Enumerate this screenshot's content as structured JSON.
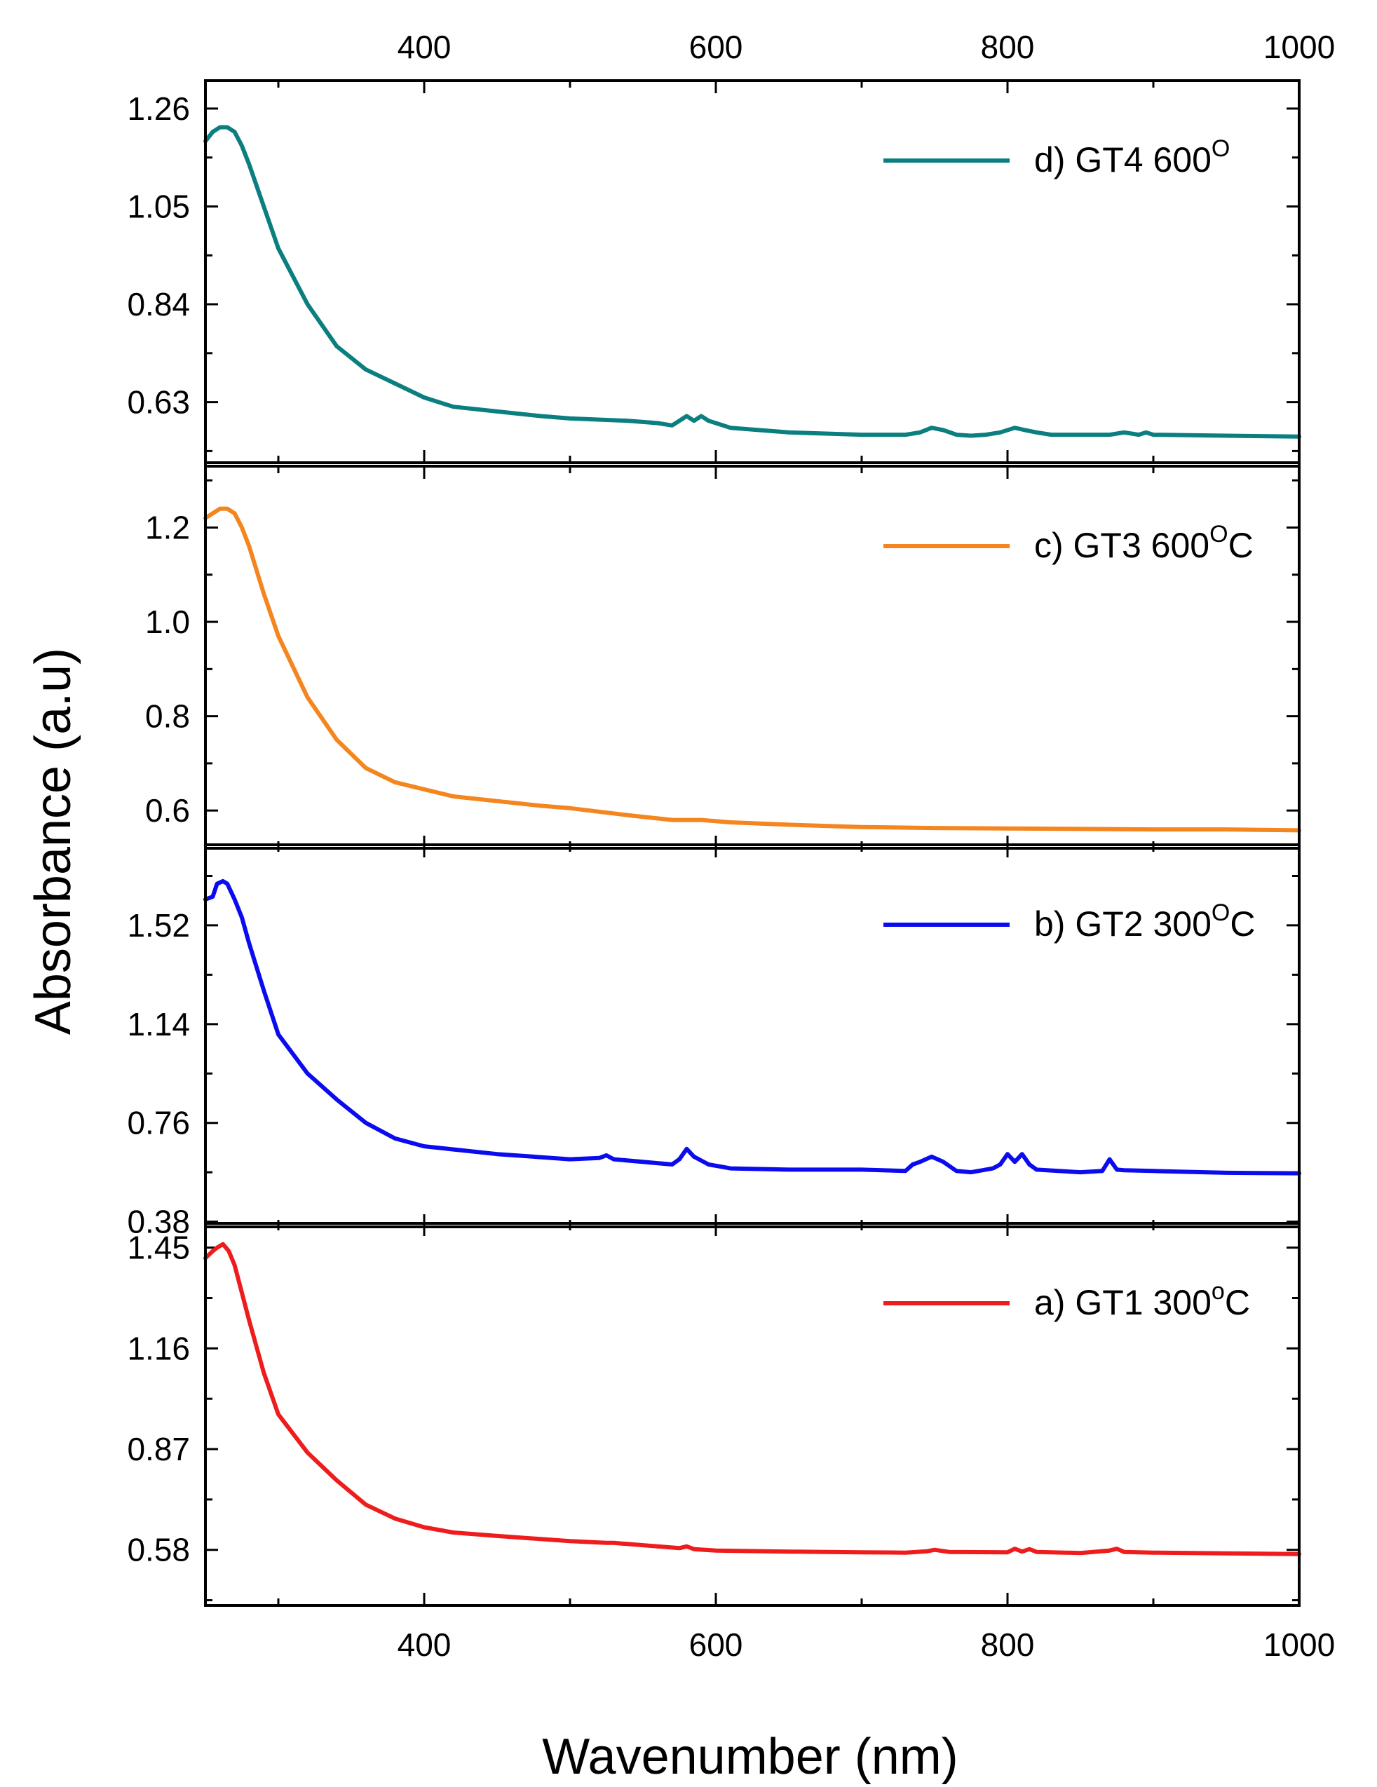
{
  "chart_data": {
    "type": "line",
    "xlabel": "Wavenumber (nm)",
    "ylabel": "Absorbance (a.u)",
    "xlim": [
      250,
      1000
    ],
    "xticks": [
      400,
      600,
      800,
      1000
    ],
    "top_axis_ticks": [
      400,
      600,
      800,
      1000
    ],
    "panels": [
      {
        "id": "d",
        "legend": "d) GT4 600O",
        "legend_main": "d) GT4 600",
        "legend_sup": "O",
        "legend_suffix": "",
        "color": "#0b7f7f",
        "ylim": [
          0.5,
          1.32
        ],
        "yticks": [
          0.63,
          0.84,
          1.05,
          1.26
        ],
        "ytick_labels": [
          "0.63",
          "0.84",
          "1.05",
          "1.26"
        ],
        "x": [
          250,
          255,
          260,
          265,
          270,
          275,
          280,
          290,
          300,
          320,
          340,
          360,
          380,
          400,
          420,
          450,
          480,
          500,
          540,
          560,
          570,
          575,
          580,
          585,
          590,
          595,
          600,
          610,
          650,
          700,
          730,
          740,
          748,
          756,
          765,
          775,
          785,
          795,
          805,
          812,
          820,
          830,
          850,
          870,
          880,
          890,
          895,
          900,
          950,
          1000
        ],
        "y": [
          1.19,
          1.21,
          1.22,
          1.22,
          1.21,
          1.18,
          1.14,
          1.05,
          0.96,
          0.84,
          0.75,
          0.7,
          0.67,
          0.64,
          0.62,
          0.61,
          0.6,
          0.595,
          0.59,
          0.585,
          0.58,
          0.59,
          0.6,
          0.59,
          0.6,
          0.59,
          0.585,
          0.575,
          0.565,
          0.56,
          0.56,
          0.565,
          0.575,
          0.57,
          0.56,
          0.558,
          0.56,
          0.565,
          0.575,
          0.57,
          0.565,
          0.56,
          0.56,
          0.56,
          0.565,
          0.56,
          0.565,
          0.56,
          0.558,
          0.556
        ]
      },
      {
        "id": "c",
        "legend": "c) GT3 600OC",
        "legend_main": "c) GT3 600",
        "legend_sup": "O",
        "legend_suffix": "C",
        "color": "#f4851f",
        "ylim": [
          0.52,
          1.33
        ],
        "yticks": [
          0.6,
          0.8,
          1.0,
          1.2
        ],
        "ytick_labels": [
          "0.6",
          "0.8",
          "1.0",
          "1.2"
        ],
        "x": [
          250,
          255,
          260,
          265,
          270,
          275,
          280,
          290,
          300,
          320,
          340,
          360,
          380,
          400,
          420,
          450,
          480,
          500,
          540,
          570,
          590,
          610,
          650,
          700,
          750,
          800,
          850,
          900,
          950,
          1000
        ],
        "y": [
          1.22,
          1.23,
          1.24,
          1.24,
          1.23,
          1.2,
          1.16,
          1.06,
          0.97,
          0.84,
          0.75,
          0.69,
          0.66,
          0.645,
          0.63,
          0.62,
          0.61,
          0.605,
          0.59,
          0.58,
          0.58,
          0.575,
          0.57,
          0.565,
          0.563,
          0.562,
          0.561,
          0.56,
          0.56,
          0.558
        ]
      },
      {
        "id": "b",
        "legend": "b) GT2 300OC",
        "legend_main": "b) GT2 300",
        "legend_sup": "O",
        "legend_suffix": "C",
        "color": "#0b0bf0",
        "ylim": [
          0.36,
          1.83
        ],
        "yticks": [
          0.38,
          0.76,
          1.14,
          1.52
        ],
        "ytick_labels": [
          "0.38",
          "0.76",
          "1.14",
          "1.52"
        ],
        "x": [
          250,
          255,
          258,
          262,
          265,
          270,
          275,
          280,
          290,
          300,
          320,
          340,
          360,
          380,
          400,
          450,
          500,
          520,
          525,
          530,
          570,
          575,
          580,
          585,
          595,
          610,
          650,
          700,
          730,
          735,
          740,
          748,
          756,
          765,
          775,
          790,
          795,
          800,
          805,
          810,
          815,
          820,
          850,
          865,
          870,
          875,
          880,
          900,
          950,
          1000
        ],
        "y": [
          1.62,
          1.63,
          1.68,
          1.69,
          1.68,
          1.62,
          1.55,
          1.45,
          1.27,
          1.1,
          0.95,
          0.85,
          0.76,
          0.7,
          0.67,
          0.64,
          0.62,
          0.625,
          0.635,
          0.62,
          0.6,
          0.62,
          0.66,
          0.63,
          0.6,
          0.585,
          0.58,
          0.58,
          0.575,
          0.6,
          0.61,
          0.63,
          0.61,
          0.575,
          0.57,
          0.585,
          0.6,
          0.64,
          0.61,
          0.64,
          0.6,
          0.58,
          0.57,
          0.575,
          0.62,
          0.58,
          0.578,
          0.575,
          0.568,
          0.566
        ]
      },
      {
        "id": "a",
        "legend": "a) GT1 300oC",
        "legend_main": "a) GT1 300",
        "legend_sup": "o",
        "legend_suffix": "C",
        "color": "#ee1c1c",
        "ylim": [
          0.42,
          1.52
        ],
        "yticks": [
          0.58,
          0.87,
          1.16,
          1.45
        ],
        "ytick_labels": [
          "0.58",
          "0.87",
          "1.16",
          "1.45"
        ],
        "x": [
          250,
          255,
          258,
          262,
          266,
          270,
          275,
          280,
          290,
          300,
          320,
          340,
          360,
          380,
          400,
          420,
          450,
          500,
          525,
          530,
          575,
          580,
          585,
          600,
          650,
          700,
          730,
          745,
          750,
          760,
          800,
          805,
          810,
          815,
          820,
          850,
          870,
          875,
          880,
          900,
          950,
          1000
        ],
        "y": [
          1.42,
          1.44,
          1.45,
          1.46,
          1.44,
          1.4,
          1.32,
          1.24,
          1.09,
          0.97,
          0.86,
          0.78,
          0.71,
          0.67,
          0.645,
          0.63,
          0.62,
          0.605,
          0.6,
          0.6,
          0.585,
          0.59,
          0.582,
          0.578,
          0.575,
          0.573,
          0.572,
          0.576,
          0.58,
          0.574,
          0.573,
          0.583,
          0.575,
          0.582,
          0.574,
          0.571,
          0.578,
          0.583,
          0.574,
          0.572,
          0.57,
          0.568
        ]
      }
    ]
  }
}
